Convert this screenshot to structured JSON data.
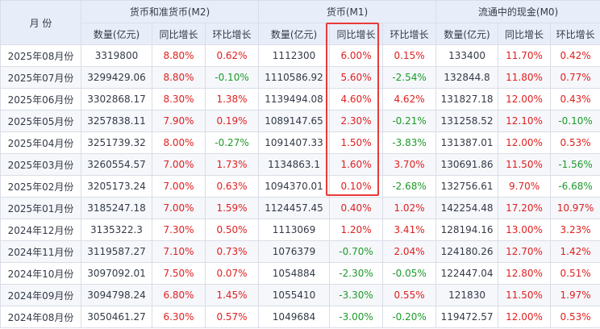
{
  "headers": {
    "month": "月  份",
    "m2": "货币和准货币(M2)",
    "m1": "货币(M1)",
    "m0": "流通中的现金(M0)",
    "quantity": "数量(亿元)",
    "yoy": "同比增长",
    "mom": "环比增长"
  },
  "colors": {
    "positive": "#e02020",
    "negative": "#1d9a2a",
    "header_bg": "#e8eef9",
    "highlight": "#e83a3a"
  },
  "rows": [
    {
      "month": "2025年08月份",
      "m2": "3319800",
      "m2_yoy": "8.80%",
      "m2_mom": "0.62%",
      "m1": "1112300",
      "m1_yoy": "6.00%",
      "m1_mom": "0.15%",
      "m0": "133400",
      "m0_yoy": "11.70%",
      "m0_mom": "0.42%"
    },
    {
      "month": "2025年07月份",
      "m2": "3299429.06",
      "m2_yoy": "8.80%",
      "m2_mom": "-0.10%",
      "m1": "1110586.92",
      "m1_yoy": "5.60%",
      "m1_mom": "-2.54%",
      "m0": "132844.8",
      "m0_yoy": "11.80%",
      "m0_mom": "0.77%"
    },
    {
      "month": "2025年06月份",
      "m2": "3302868.17",
      "m2_yoy": "8.30%",
      "m2_mom": "1.38%",
      "m1": "1139494.08",
      "m1_yoy": "4.60%",
      "m1_mom": "4.62%",
      "m0": "131827.18",
      "m0_yoy": "12.00%",
      "m0_mom": "0.43%"
    },
    {
      "month": "2025年05月份",
      "m2": "3257838.11",
      "m2_yoy": "7.90%",
      "m2_mom": "0.19%",
      "m1": "1089147.65",
      "m1_yoy": "2.30%",
      "m1_mom": "-0.21%",
      "m0": "131258.52",
      "m0_yoy": "12.10%",
      "m0_mom": "-0.10%"
    },
    {
      "month": "2025年04月份",
      "m2": "3251739.32",
      "m2_yoy": "8.00%",
      "m2_mom": "-0.27%",
      "m1": "1091407.33",
      "m1_yoy": "1.50%",
      "m1_mom": "-3.83%",
      "m0": "131387.01",
      "m0_yoy": "12.00%",
      "m0_mom": "0.53%"
    },
    {
      "month": "2025年03月份",
      "m2": "3260554.57",
      "m2_yoy": "7.00%",
      "m2_mom": "1.73%",
      "m1": "1134863.1",
      "m1_yoy": "1.60%",
      "m1_mom": "3.70%",
      "m0": "130691.86",
      "m0_yoy": "11.50%",
      "m0_mom": "-1.56%"
    },
    {
      "month": "2025年02月份",
      "m2": "3205173.24",
      "m2_yoy": "7.00%",
      "m2_mom": "0.63%",
      "m1": "1094370.01",
      "m1_yoy": "0.10%",
      "m1_mom": "-2.68%",
      "m0": "132756.61",
      "m0_yoy": "9.70%",
      "m0_mom": "-6.68%"
    },
    {
      "month": "2025年01月份",
      "m2": "3185247.18",
      "m2_yoy": "7.00%",
      "m2_mom": "1.59%",
      "m1": "1124457.45",
      "m1_yoy": "0.40%",
      "m1_mom": "1.02%",
      "m0": "142254.48",
      "m0_yoy": "17.20%",
      "m0_mom": "10.97%"
    },
    {
      "month": "2024年12月份",
      "m2": "3135322.3",
      "m2_yoy": "7.30%",
      "m2_mom": "0.50%",
      "m1": "1113069",
      "m1_yoy": "1.20%",
      "m1_mom": "3.41%",
      "m0": "128194.16",
      "m0_yoy": "13.00%",
      "m0_mom": "3.23%"
    },
    {
      "month": "2024年11月份",
      "m2": "3119587.27",
      "m2_yoy": "7.10%",
      "m2_mom": "0.73%",
      "m1": "1076379",
      "m1_yoy": "-0.70%",
      "m1_mom": "2.04%",
      "m0": "124180.26",
      "m0_yoy": "12.70%",
      "m0_mom": "1.42%"
    },
    {
      "month": "2024年10月份",
      "m2": "3097092.01",
      "m2_yoy": "7.50%",
      "m2_mom": "0.07%",
      "m1": "1054884",
      "m1_yoy": "-2.30%",
      "m1_mom": "-0.05%",
      "m0": "122447.04",
      "m0_yoy": "12.80%",
      "m0_mom": "0.51%"
    },
    {
      "month": "2024年09月份",
      "m2": "3094798.24",
      "m2_yoy": "6.80%",
      "m2_mom": "1.45%",
      "m1": "1055410",
      "m1_yoy": "-3.30%",
      "m1_mom": "0.55%",
      "m0": "121830",
      "m0_yoy": "11.50%",
      "m0_mom": "1.97%"
    },
    {
      "month": "2024年08月份",
      "m2": "3050461.27",
      "m2_yoy": "6.30%",
      "m2_mom": "0.57%",
      "m1": "1049684",
      "m1_yoy": "-3.00%",
      "m1_mom": "-0.20%",
      "m0": "119472.57",
      "m0_yoy": "12.00%",
      "m0_mom": "0.53%"
    }
  ]
}
